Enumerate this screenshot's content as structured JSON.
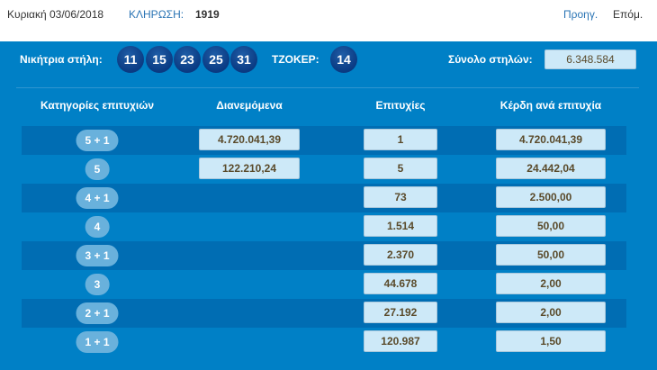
{
  "header": {
    "date": "Κυριακή 03/06/2018",
    "draw_label": "ΚΛΗΡΩΣΗ:",
    "draw_number": "1919",
    "prev": "Προηγ.",
    "next": "Επόμ."
  },
  "winning": {
    "label": "Νικήτρια στήλη:",
    "numbers": [
      "11",
      "15",
      "23",
      "25",
      "31"
    ],
    "joker_label": "ΤΖΟΚΕΡ:",
    "joker": "14",
    "total_label": "Σύνολο στηλών:",
    "total": "6.348.584"
  },
  "table": {
    "headers": [
      "Κατηγορίες επιτυχιών",
      "Διανεμόμενα",
      "Επιτυχίες",
      "Κέρδη ανά επιτυχία"
    ],
    "rows": [
      {
        "cat": "5 + 1",
        "distributed": "4.720.041,39",
        "winners": "1",
        "prize": "4.720.041,39"
      },
      {
        "cat": "5",
        "distributed": "122.210,24",
        "winners": "5",
        "prize": "24.442,04"
      },
      {
        "cat": "4 + 1",
        "distributed": "",
        "winners": "73",
        "prize": "2.500,00"
      },
      {
        "cat": "4",
        "distributed": "",
        "winners": "1.514",
        "prize": "50,00"
      },
      {
        "cat": "3 + 1",
        "distributed": "",
        "winners": "2.370",
        "prize": "50,00"
      },
      {
        "cat": "3",
        "distributed": "",
        "winners": "44.678",
        "prize": "2,00"
      },
      {
        "cat": "2 + 1",
        "distributed": "",
        "winners": "27.192",
        "prize": "2,00"
      },
      {
        "cat": "1 + 1",
        "distributed": "",
        "winners": "120.987",
        "prize": "1,50"
      }
    ]
  },
  "colors": {
    "panel": "#0080c6",
    "band": "#006db3",
    "box": "#cde9f8",
    "ball": "#0a3a82"
  }
}
